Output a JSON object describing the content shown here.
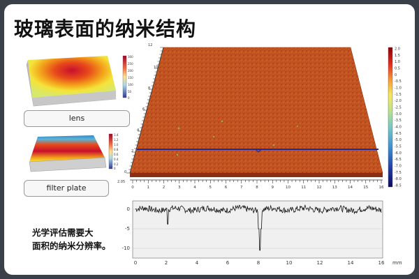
{
  "title": "玻璃表面的纳米结构",
  "panels": [
    {
      "label": "lens"
    },
    {
      "label": "filter plate"
    }
  ],
  "description_lines": [
    "光学评估需要大",
    "面积的纳米分辨率。"
  ],
  "colorbar": {
    "ticks": [
      "2.0",
      "1.5",
      "1.0",
      "0.5",
      "0",
      "-0.5",
      "-1.0",
      "-1.5",
      "-2.0",
      "-2.5",
      "-3.0",
      "-3.5",
      "-4.0",
      "-4.5",
      "-5.0",
      "-5.5",
      "-6.0",
      "-6.5",
      "-7.0",
      "-7.5",
      "-8.0",
      "-8.5"
    ]
  },
  "surface_axes": {
    "x_ticks": [
      "0",
      "1",
      "2",
      "3",
      "4",
      "5",
      "6",
      "7",
      "8",
      "9",
      "10",
      "11",
      "12",
      "13",
      "14",
      "15",
      "16"
    ],
    "y_ticks": [
      "0",
      "2",
      "4",
      "6",
      "8",
      "10",
      "12"
    ],
    "y_top_label": "12",
    "y_bottom_label": "2.05"
  },
  "profile": {
    "y_ticks": [
      "0",
      "-5",
      "-10"
    ],
    "x_ticks": [
      "0",
      "2",
      "4",
      "6",
      "8",
      "10",
      "12",
      "14",
      "16"
    ],
    "x_unit": "mm"
  },
  "thumb_colorbars": {
    "lens_ticks": [
      "300",
      "250",
      "200",
      "150",
      "100",
      "50",
      "0"
    ],
    "filter_ticks": [
      "1.4",
      "1.2",
      "1.0",
      "0.8",
      "0.6",
      "0.4",
      "0.2",
      "0"
    ]
  }
}
